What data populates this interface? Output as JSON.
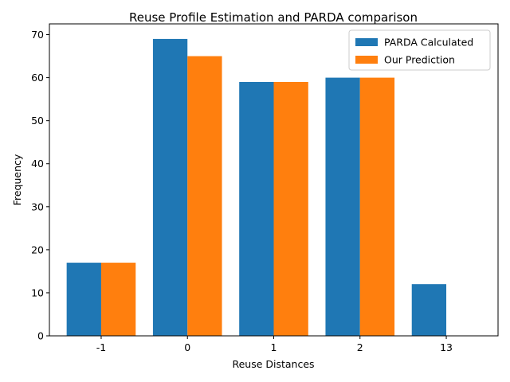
{
  "chart_data": {
    "type": "bar",
    "title": "Reuse Profile Estimation and PARDA comparison",
    "xlabel": "Reuse Distances",
    "ylabel": "Frequency",
    "categories": [
      "-1",
      "0",
      "1",
      "2",
      "13"
    ],
    "series": [
      {
        "name": "PARDA Calculated",
        "color": "#1f77b4",
        "values": [
          17,
          69,
          59,
          60,
          12
        ]
      },
      {
        "name": "Our Prediction",
        "color": "#ff7f0e",
        "values": [
          17,
          65,
          59,
          60,
          0
        ]
      }
    ],
    "ylim": [
      0,
      72.5
    ],
    "yticks": [
      0,
      10,
      20,
      30,
      40,
      50,
      60,
      70
    ],
    "grid": false,
    "legend_position": "top-right"
  }
}
